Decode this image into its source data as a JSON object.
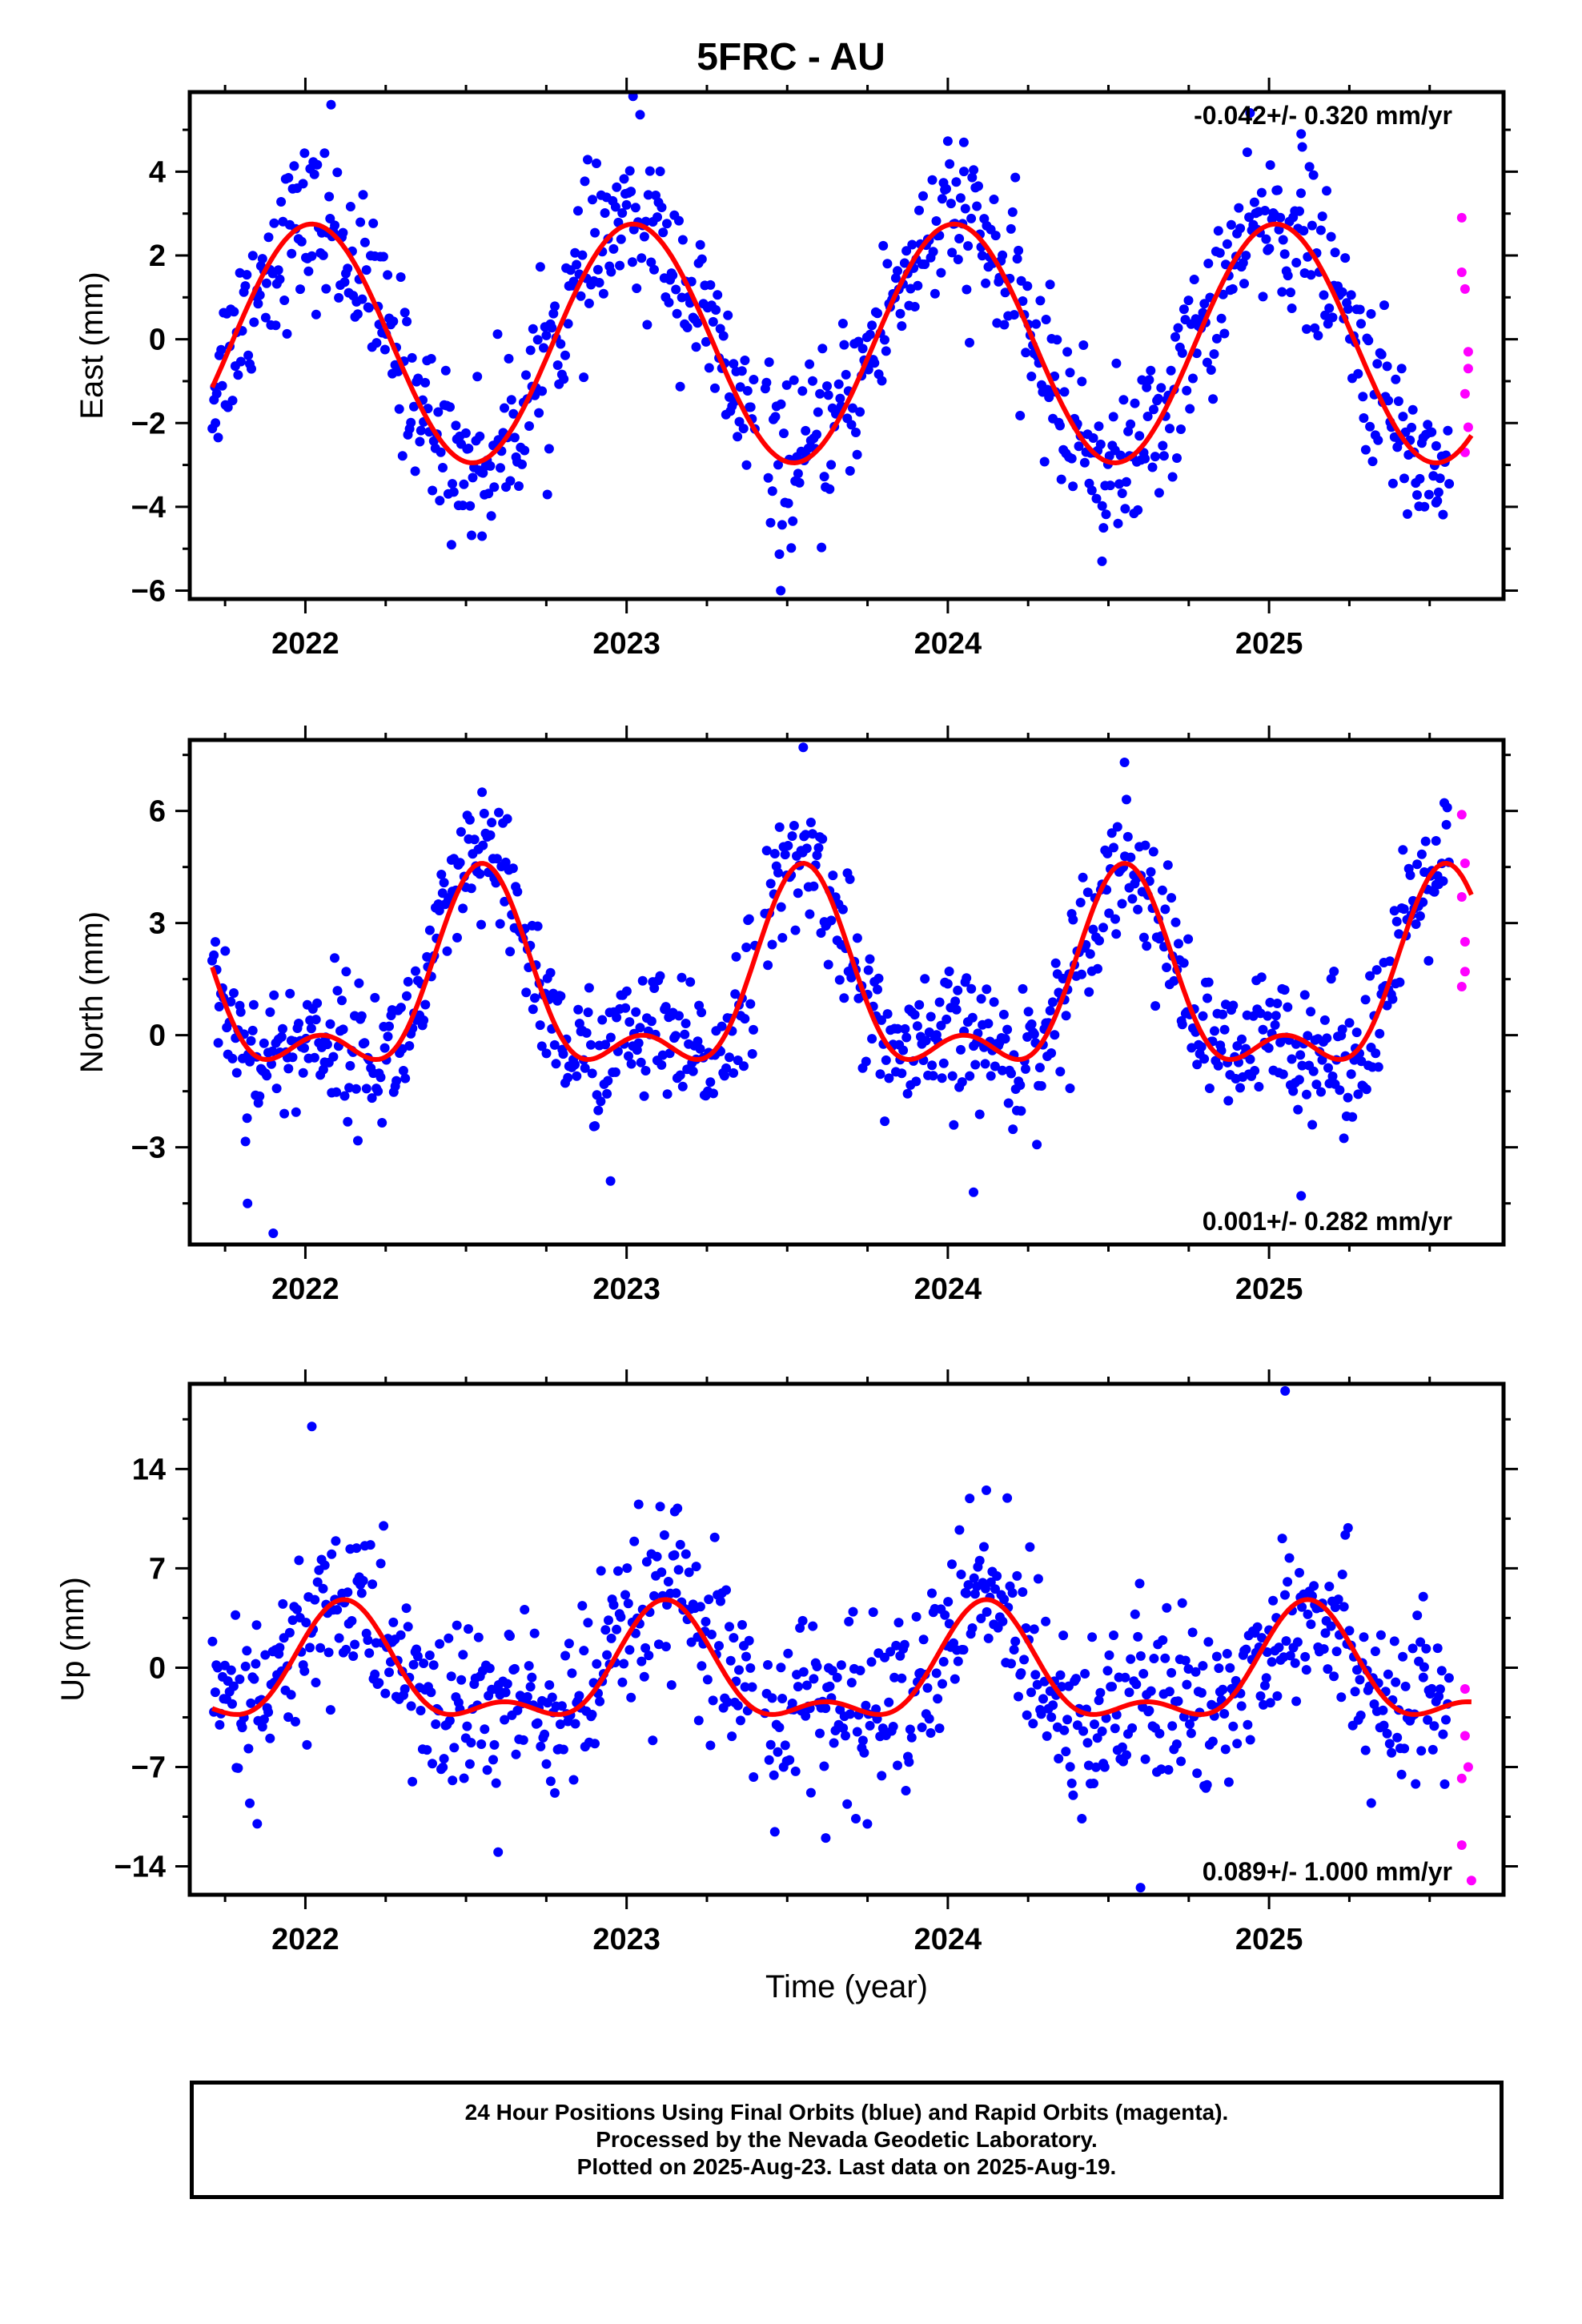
{
  "title": "5FRC - AU",
  "footer": {
    "line1": "24 Hour Positions Using Final Orbits (blue) and Rapid Orbits (magenta).",
    "line2": "Processed by the Nevada Geodetic Laboratory.",
    "line3": "Plotted on 2025-Aug-23. Last data on 2025-Aug-19."
  },
  "colors": {
    "final": "#0000ff",
    "rapid": "#ff00ff",
    "model": "#ff0000",
    "axis": "#000000"
  },
  "chart_data": [
    {
      "type": "scatter",
      "panel": "east",
      "ylabel": "East (mm)",
      "xlabel": "",
      "xlim": [
        2021.64,
        2025.73
      ],
      "ylim": [
        -6.2,
        5.9
      ],
      "x_ticks": [
        2022,
        2023,
        2024,
        2025
      ],
      "x_tick_labels": [
        "2022",
        "2023",
        "2024",
        "2025"
      ],
      "y_ticks": [
        -6,
        -4,
        -2,
        0,
        2,
        4
      ],
      "y_tick_labels": [
        "−6",
        "−4",
        "−2",
        "0",
        "2",
        "4"
      ],
      "annotation": "-0.042+/- 0.320 mm/yr",
      "annotation_position": "top-right",
      "grid": false,
      "model": {
        "amplitude": 2.85,
        "phase_peak": 0.02,
        "offset": -0.1,
        "semi_amplitude": 0.0,
        "semi_phase": 0.0
      },
      "scatter_noise": 0.95,
      "series": [
        {
          "name": "Final Orbits",
          "color": "blue",
          "x_start": 2021.71,
          "x_end": 2025.56,
          "sample": [
            [
              2021.72,
              -2.0
            ],
            [
              2022.08,
              5.6
            ],
            [
              2022.55,
              -4.7
            ],
            [
              2023.02,
              5.8
            ],
            [
              2023.48,
              -6.0
            ],
            [
              2024.05,
              4.7
            ],
            [
              2024.48,
              -5.3
            ],
            [
              2025.1,
              4.9
            ],
            [
              2025.52,
              -3.9
            ]
          ]
        },
        {
          "name": "Rapid Orbits",
          "color": "magenta",
          "points": [
            [
              2025.6,
              2.9
            ],
            [
              2025.6,
              1.6
            ],
            [
              2025.61,
              1.2
            ],
            [
              2025.62,
              -0.3
            ],
            [
              2025.62,
              -0.7
            ],
            [
              2025.61,
              -1.3
            ],
            [
              2025.62,
              -2.1
            ],
            [
              2025.61,
              -2.7
            ]
          ]
        }
      ]
    },
    {
      "type": "scatter",
      "panel": "north",
      "ylabel": "North (mm)",
      "xlabel": "",
      "xlim": [
        2021.64,
        2025.73
      ],
      "ylim": [
        -5.6,
        7.9
      ],
      "x_ticks": [
        2022,
        2023,
        2024,
        2025
      ],
      "x_tick_labels": [
        "2022",
        "2023",
        "2024",
        "2025"
      ],
      "y_ticks": [
        -3,
        0,
        3,
        6
      ],
      "y_tick_labels": [
        "−3",
        "0",
        "3",
        "6"
      ],
      "annotation": "0.001+/- 0.282 mm/yr",
      "annotation_position": "bottom-right",
      "grid": false,
      "model": {
        "amplitude": 2.3,
        "phase_peak": 0.55,
        "offset": 1.1,
        "semi_amplitude": 1.2,
        "semi_phase": 0.55
      },
      "scatter_noise": 0.9,
      "series": [
        {
          "name": "Final Orbits",
          "color": "blue",
          "x_start": 2021.71,
          "x_end": 2025.56,
          "sample": [
            [
              2021.82,
              -4.5
            ],
            [
              2021.9,
              -5.3
            ],
            [
              2022.55,
              6.5
            ],
            [
              2022.95,
              -3.9
            ],
            [
              2023.55,
              7.7
            ],
            [
              2024.08,
              -4.2
            ],
            [
              2024.55,
              7.3
            ],
            [
              2025.1,
              -4.3
            ],
            [
              2025.52,
              5.2
            ]
          ]
        },
        {
          "name": "Rapid Orbits",
          "color": "magenta",
          "points": [
            [
              2025.6,
              5.9
            ],
            [
              2025.61,
              4.6
            ],
            [
              2025.6,
              3.7
            ],
            [
              2025.61,
              2.5
            ],
            [
              2025.61,
              1.7
            ],
            [
              2025.6,
              1.3
            ]
          ]
        }
      ]
    },
    {
      "type": "scatter",
      "panel": "up",
      "ylabel": "Up (mm)",
      "xlabel": "Time (year)",
      "xlim": [
        2021.64,
        2025.73
      ],
      "ylim": [
        -16,
        20
      ],
      "x_ticks": [
        2022,
        2023,
        2024,
        2025
      ],
      "x_tick_labels": [
        "2022",
        "2023",
        "2024",
        "2025"
      ],
      "y_ticks": [
        -14,
        -7,
        0,
        7,
        14
      ],
      "y_tick_labels": [
        "−14",
        "−7",
        "0",
        "7",
        "14"
      ],
      "annotation": "0.089+/- 1.000 mm/yr",
      "annotation_position": "bottom-right",
      "grid": false,
      "model": {
        "amplitude": 3.6,
        "phase_peak": 0.12,
        "offset": -0.6,
        "semi_amplitude": 1.8,
        "semi_phase": 0.12
      },
      "scatter_noise": 3.2,
      "series": [
        {
          "name": "Final Orbits",
          "color": "blue",
          "x_start": 2021.71,
          "x_end": 2025.56,
          "sample": [
            [
              2021.85,
              -11.0
            ],
            [
              2022.02,
              17.0
            ],
            [
              2022.6,
              -13.0
            ],
            [
              2023.15,
              11.0
            ],
            [
              2023.62,
              -12.0
            ],
            [
              2024.12,
              12.5
            ],
            [
              2024.6,
              -15.5
            ],
            [
              2025.05,
              19.5
            ],
            [
              2025.48,
              5.0
            ]
          ]
        },
        {
          "name": "Rapid Orbits",
          "color": "magenta",
          "points": [
            [
              2025.61,
              -1.5
            ],
            [
              2025.61,
              -4.8
            ],
            [
              2025.62,
              -7.0
            ],
            [
              2025.6,
              -7.8
            ],
            [
              2025.6,
              -12.5
            ],
            [
              2025.63,
              -15.0
            ]
          ]
        }
      ]
    }
  ]
}
